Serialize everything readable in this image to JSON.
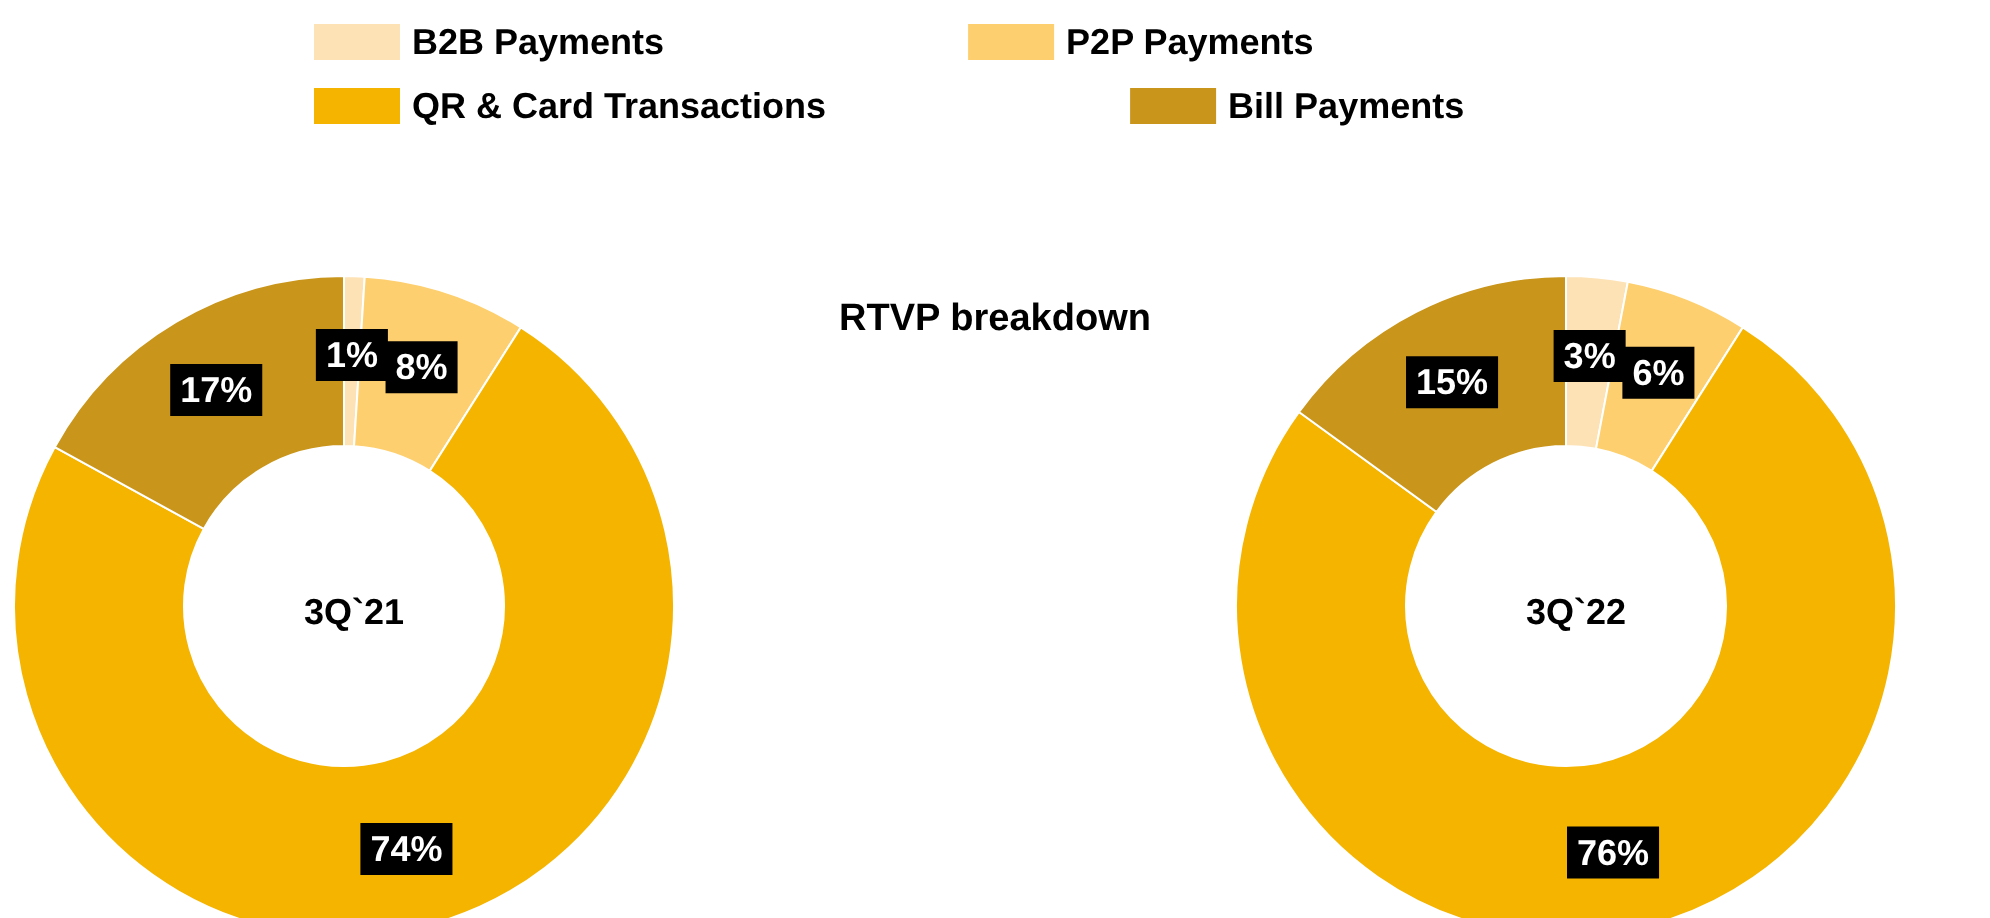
{
  "chart_data": {
    "type": "donut",
    "title": "RTVP breakdown",
    "categories": [
      "B2B Payments",
      "P2P Payments",
      "QR & Card Transactions",
      "Bill Payments"
    ],
    "colors": [
      "#fde2b5",
      "#fdcf6e",
      "#f5b400",
      "#c9951a"
    ],
    "series": [
      {
        "name": "3Q`21",
        "values": [
          1,
          8,
          74,
          17
        ],
        "value_labels": [
          "1%",
          "8%",
          "74%",
          "17%"
        ]
      },
      {
        "name": "3Q`22",
        "values": [
          3,
          6,
          76,
          15
        ],
        "value_labels": [
          "3%",
          "6%",
          "76%",
          "15%"
        ]
      }
    ],
    "legend": "top"
  }
}
